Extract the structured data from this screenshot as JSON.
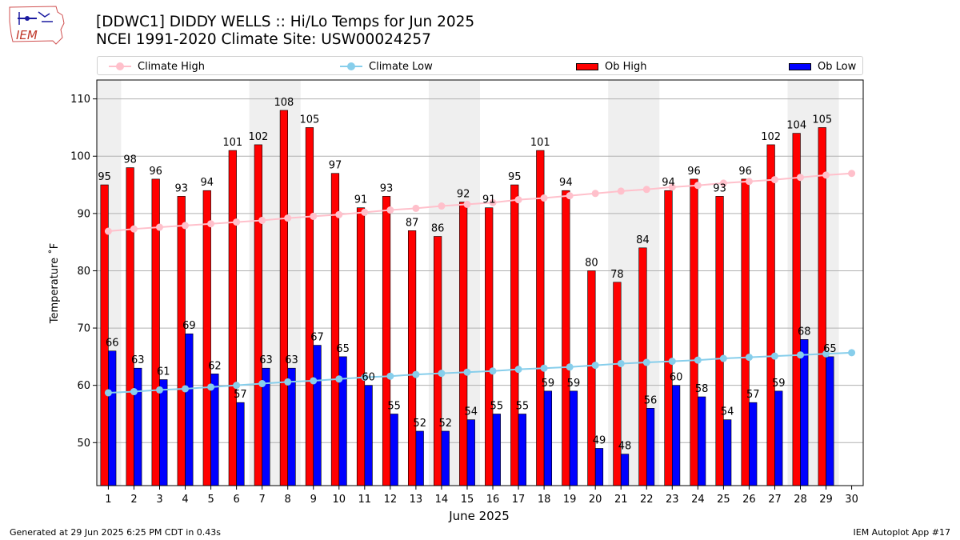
{
  "header": {
    "title_line1": "[DDWC1] DIDDY WELLS :: Hi/Lo Temps for Jun 2025",
    "title_line2": "NCEI 1991-2020 Climate Site: USW00024257"
  },
  "logo": {
    "text": "IEM"
  },
  "footer": {
    "left": "Generated at 29 Jun 2025 6:25 PM CDT in 0.43s",
    "right": "IEM Autoplot App #17"
  },
  "legend": {
    "climate_high": "Climate High",
    "climate_low": "Climate Low",
    "ob_high": "Ob High",
    "ob_low": "Ob Low"
  },
  "colors": {
    "ob_high": "#ff0000",
    "ob_low": "#0000ff",
    "climate_high": "#ffc0cb",
    "climate_low": "#87ceeb",
    "weekend_band": "#efefef",
    "grid": "#b0b0b0"
  },
  "chart_data": {
    "type": "bar",
    "xlabel": "June 2025",
    "ylabel": "Temperature ˚F",
    "ylim": [
      42.5,
      113.3
    ],
    "yticks": [
      50,
      60,
      70,
      80,
      90,
      100,
      110
    ],
    "grid": "horizontal",
    "legend_placement": "top",
    "weekend_bands": [
      [
        1,
        1
      ],
      [
        7,
        8
      ],
      [
        14,
        15
      ],
      [
        21,
        22
      ],
      [
        28,
        29
      ]
    ],
    "x": [
      1,
      2,
      3,
      4,
      5,
      6,
      7,
      8,
      9,
      10,
      11,
      12,
      13,
      14,
      15,
      16,
      17,
      18,
      19,
      20,
      21,
      22,
      23,
      24,
      25,
      26,
      27,
      28,
      29,
      30
    ],
    "series": [
      {
        "name": "Ob High",
        "kind": "bar",
        "values": [
          95,
          98,
          96,
          93,
          94,
          101,
          102,
          108,
          105,
          97,
          91,
          93,
          87,
          86,
          92,
          91,
          95,
          101,
          94,
          80,
          78,
          84,
          94,
          96,
          93,
          96,
          102,
          104,
          105,
          null
        ]
      },
      {
        "name": "Ob Low",
        "kind": "bar",
        "values": [
          66,
          63,
          61,
          69,
          62,
          57,
          63,
          63,
          67,
          65,
          60,
          55,
          52,
          52,
          54,
          55,
          55,
          59,
          59,
          49,
          48,
          56,
          60,
          58,
          54,
          57,
          59,
          68,
          65,
          null
        ]
      },
      {
        "name": "Climate High",
        "kind": "line",
        "values": [
          86.9,
          87.3,
          87.6,
          87.9,
          88.2,
          88.5,
          88.8,
          89.2,
          89.5,
          89.8,
          90.2,
          90.6,
          90.9,
          91.3,
          91.6,
          91.9,
          92.4,
          92.7,
          93.1,
          93.5,
          93.9,
          94.2,
          94.6,
          94.9,
          95.3,
          95.6,
          95.9,
          96.3,
          96.7,
          97.0
        ]
      },
      {
        "name": "Climate Low",
        "kind": "line",
        "values": [
          58.7,
          58.9,
          59.2,
          59.4,
          59.7,
          60.0,
          60.3,
          60.6,
          60.8,
          61.1,
          61.4,
          61.6,
          61.9,
          62.1,
          62.3,
          62.5,
          62.8,
          63.0,
          63.2,
          63.5,
          63.8,
          64.0,
          64.2,
          64.4,
          64.7,
          64.9,
          65.1,
          65.3,
          65.5,
          65.7
        ]
      }
    ]
  }
}
